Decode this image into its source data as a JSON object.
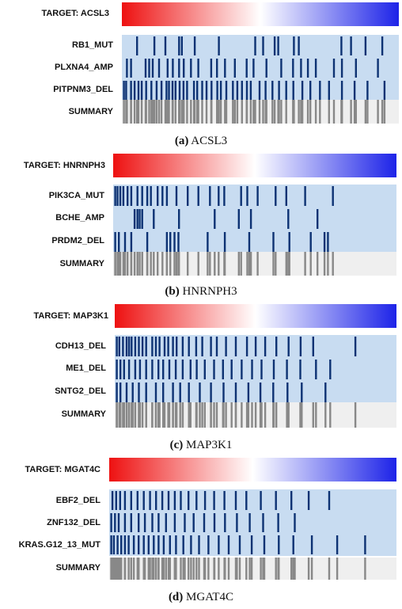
{
  "colors": {
    "row_background": "#c8dcf1",
    "hit": "#0d3273",
    "summary_background": "#efefef",
    "summary_hit": "#888888",
    "gradient_left": "#ee1111",
    "gradient_mid": "#ffffff",
    "gradient_right": "#1d23e8"
  },
  "panels": [
    {
      "target_label": "TARGET:  ACSL3",
      "caption_letter": "(a)",
      "caption_name": "ACSL3",
      "rows": [
        {
          "label": "RB1_MUT",
          "hits": [
            0.052,
            0.115,
            0.155,
            0.205,
            0.215,
            0.262,
            0.35,
            0.482,
            0.511,
            0.553,
            0.566,
            0.623,
            0.641,
            0.796,
            0.831,
            0.884,
            0.945
          ]
        },
        {
          "label": "PLXNA4_AMP",
          "hits": [
            0.015,
            0.03,
            0.083,
            0.096,
            0.109,
            0.132,
            0.163,
            0.182,
            0.205,
            0.222,
            0.248,
            0.275,
            0.322,
            0.343,
            0.372,
            0.408,
            0.451,
            0.476,
            0.523,
            0.577,
            0.62,
            0.649,
            0.674,
            0.703,
            0.769,
            0.798,
            0.849,
            0.929
          ]
        },
        {
          "label": "PITPNM3_DEL",
          "hits": [
            0.004,
            0.012,
            0.03,
            0.043,
            0.057,
            0.069,
            0.085,
            0.104,
            0.123,
            0.141,
            0.159,
            0.168,
            0.181,
            0.192,
            0.207,
            0.221,
            0.234,
            0.259,
            0.271,
            0.289,
            0.305,
            0.323,
            0.344,
            0.357,
            0.377,
            0.401,
            0.417,
            0.434,
            0.452,
            0.466,
            0.498,
            0.52,
            0.545,
            0.569,
            0.595,
            0.621,
            0.654,
            0.683,
            0.718,
            0.751,
            0.798,
            0.844,
            0.891,
            0.953
          ]
        }
      ],
      "summary_label": "SUMMARY"
    },
    {
      "target_label": "TARGET:  HNRNPH3",
      "caption_letter": "(b)",
      "caption_name": "HNRNPH3",
      "rows": [
        {
          "label": "PIK3CA_MUT",
          "hits": [
            0.004,
            0.012,
            0.022,
            0.033,
            0.048,
            0.061,
            0.083,
            0.1,
            0.118,
            0.131,
            0.155,
            0.172,
            0.188,
            0.222,
            0.262,
            0.3,
            0.341,
            0.372,
            0.392,
            0.452,
            0.474,
            0.511,
            0.575,
            0.613,
            0.68,
            0.779
          ]
        },
        {
          "label": "BCHE_AMP",
          "hits": [
            0.073,
            0.083,
            0.091,
            0.1,
            0.141,
            0.231,
            0.358,
            0.444,
            0.487,
            0.62,
            0.724
          ]
        },
        {
          "label": "PRDM2_DEL",
          "hits": [
            0.004,
            0.017,
            0.039,
            0.061,
            0.118,
            0.188,
            0.2,
            0.215,
            0.229,
            0.333,
            0.394,
            0.481,
            0.567,
            0.624,
            0.7,
            0.749,
            0.761
          ]
        }
      ],
      "summary_label": "SUMMARY"
    },
    {
      "target_label": "TARGET:  MAP3K1",
      "caption_letter": "(c)",
      "caption_name": "MAP3K1",
      "rows": [
        {
          "label": "CDH13_DEL",
          "hits": [
            0.004,
            0.013,
            0.026,
            0.039,
            0.048,
            0.057,
            0.07,
            0.083,
            0.096,
            0.109,
            0.131,
            0.144,
            0.157,
            0.175,
            0.188,
            0.205,
            0.218,
            0.24,
            0.262,
            0.288,
            0.31,
            0.341,
            0.362,
            0.395,
            0.43,
            0.47,
            0.501,
            0.535,
            0.575,
            0.619,
            0.662,
            0.707,
            0.858
          ]
        },
        {
          "label": "ME1_DEL",
          "hits": [
            0.004,
            0.017,
            0.03,
            0.048,
            0.07,
            0.087,
            0.109,
            0.131,
            0.153,
            0.17,
            0.192,
            0.215,
            0.24,
            0.268,
            0.29,
            0.319,
            0.352,
            0.384,
            0.415,
            0.451,
            0.488,
            0.522,
            0.566,
            0.613,
            0.661,
            0.717,
            0.768
          ]
        },
        {
          "label": "SNTG2_DEL",
          "hits": [
            0.004,
            0.017,
            0.039,
            0.061,
            0.083,
            0.109,
            0.144,
            0.17,
            0.205,
            0.231,
            0.262,
            0.301,
            0.341,
            0.386,
            0.43,
            0.475,
            0.518,
            0.564,
            0.615,
            0.666,
            0.751
          ]
        }
      ],
      "summary_label": "SUMMARY"
    },
    {
      "target_label": "TARGET:  MGAT4C",
      "caption_letter": "(d)",
      "caption_name": "MGAT4C",
      "rows": [
        {
          "label": "EBF2_DEL",
          "hits": [
            0.008,
            0.021,
            0.035,
            0.052,
            0.074,
            0.096,
            0.118,
            0.14,
            0.161,
            0.183,
            0.205,
            0.227,
            0.248,
            0.275,
            0.303,
            0.333,
            0.365,
            0.401,
            0.441,
            0.478,
            0.529,
            0.582,
            0.636,
            0.697,
            0.769
          ]
        },
        {
          "label": "ZNF132_DEL",
          "hits": [
            0.004,
            0.017,
            0.03,
            0.052,
            0.074,
            0.1,
            0.122,
            0.148,
            0.17,
            0.196,
            0.227,
            0.262,
            0.293,
            0.33,
            0.366,
            0.403,
            0.445,
            0.49,
            0.537,
            0.59,
            0.648
          ]
        },
        {
          "label": "KRAS.G12_13_MUT",
          "hits": [
            0.004,
            0.013,
            0.026,
            0.039,
            0.052,
            0.065,
            0.083,
            0.1,
            0.118,
            0.135,
            0.153,
            0.17,
            0.188,
            0.21,
            0.231,
            0.257,
            0.284,
            0.312,
            0.345,
            0.381,
            0.416,
            0.455,
            0.497,
            0.541,
            0.592,
            0.643,
            0.708,
            0.797,
            0.895
          ]
        }
      ],
      "summary_label": "SUMMARY"
    }
  ]
}
